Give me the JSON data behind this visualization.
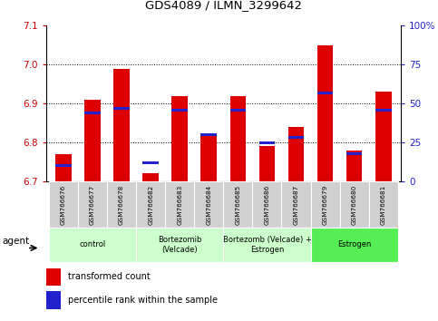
{
  "title": "GDS4089 / ILMN_3299642",
  "samples": [
    "GSM766676",
    "GSM766677",
    "GSM766678",
    "GSM766682",
    "GSM766683",
    "GSM766684",
    "GSM766685",
    "GSM766686",
    "GSM766687",
    "GSM766679",
    "GSM766680",
    "GSM766681"
  ],
  "transformed_count": [
    6.77,
    6.91,
    6.99,
    6.72,
    6.92,
    6.82,
    6.92,
    6.79,
    6.84,
    7.05,
    6.78,
    6.93
  ],
  "percentile_rank": [
    10,
    44,
    47,
    12,
    46,
    30,
    46,
    25,
    28,
    57,
    18,
    46
  ],
  "ylim_left": [
    6.7,
    7.1
  ],
  "ylim_right": [
    0,
    100
  ],
  "bar_color_red": "#dd0000",
  "bar_color_blue": "#2222cc",
  "tick_color_left": "#cc0000",
  "tick_color_right": "#2222cc",
  "groups": [
    {
      "label": "control",
      "start": 0,
      "end": 3,
      "color": "#ccffcc"
    },
    {
      "label": "Bortezomib\n(Velcade)",
      "start": 3,
      "end": 6,
      "color": "#ccffcc"
    },
    {
      "label": "Bortezomb (Velcade) +\nEstrogen",
      "start": 6,
      "end": 9,
      "color": "#ccffcc"
    },
    {
      "label": "Estrogen",
      "start": 9,
      "end": 12,
      "color": "#55ee55"
    }
  ],
  "xlabel_agent": "agent",
  "legend_red": "transformed count",
  "legend_blue": "percentile rank within the sample",
  "base_value": 6.7,
  "left_ticks": [
    6.7,
    6.8,
    6.9,
    7.0,
    7.1
  ],
  "right_ticks": [
    0,
    25,
    50,
    75,
    100
  ],
  "right_tick_labels": [
    "0",
    "25",
    "50",
    "75",
    "100%"
  ],
  "grid_lines": [
    6.8,
    6.9,
    7.0
  ]
}
